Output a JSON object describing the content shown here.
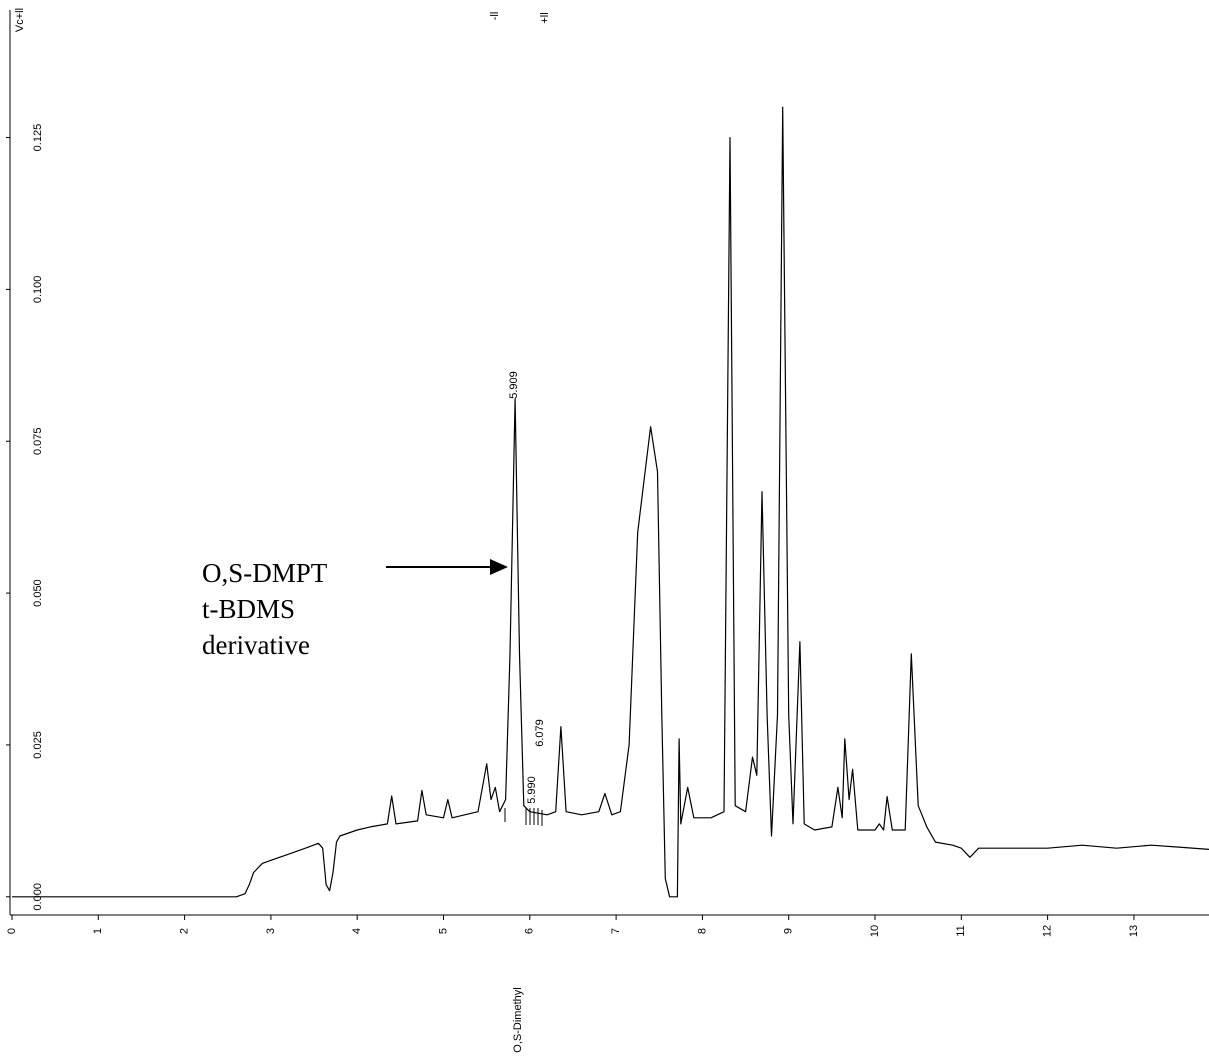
{
  "chart_data": {
    "type": "line",
    "y_label": "Vc+ll",
    "markers": [
      "-ll",
      "+ll"
    ],
    "peak_labels": [
      "5.909",
      "5.990",
      "6.079"
    ],
    "annotation": [
      "O,S-DMPT",
      "t-BDMS",
      "derivative"
    ],
    "compound_label": "O,S-Dimethyl",
    "color": "#000000",
    "xlim": [
      0,
      13.87
    ],
    "ylim": [
      -0.003,
      0.146
    ],
    "xticks": [
      0,
      1,
      2,
      3,
      4,
      5,
      6,
      7,
      8,
      9,
      10,
      11,
      12,
      13
    ],
    "yticks": [
      {
        "value": 0,
        "label": "0.000"
      },
      0.025,
      {
        "value": 0.05,
        "label": "0.050"
      },
      0.075,
      {
        "value": 0.1,
        "label": "0.100"
      },
      0.125
    ],
    "x": [
      0,
      1,
      2,
      2.6,
      2.7,
      2.75,
      2.8,
      2.9,
      3.0,
      3.2,
      3.4,
      3.55,
      3.6,
      3.64,
      3.68,
      3.72,
      3.76,
      3.8,
      4.0,
      4.15,
      4.35,
      4.4,
      4.45,
      4.7,
      4.75,
      4.8,
      5.0,
      5.05,
      5.1,
      5.4,
      5.5,
      5.55,
      5.6,
      5.65,
      5.72,
      5.77,
      5.83,
      5.88,
      5.93,
      6.0,
      6.2,
      6.3,
      6.36,
      6.42,
      6.6,
      6.8,
      6.87,
      6.95,
      7.05,
      7.15,
      7.25,
      7.4,
      7.48,
      7.53,
      7.57,
      7.62,
      7.71,
      7.73,
      7.75,
      7.83,
      7.9,
      8.1,
      8.25,
      8.32,
      8.38,
      8.5,
      8.58,
      8.63,
      8.69,
      8.75,
      8.8,
      8.87,
      8.93,
      9.0,
      9.05,
      9.13,
      9.18,
      9.3,
      9.5,
      9.57,
      9.62,
      9.65,
      9.7,
      9.74,
      9.8,
      10.0,
      10.05,
      10.1,
      10.14,
      10.2,
      10.35,
      10.42,
      10.5,
      10.6,
      10.7,
      10.9,
      11.0,
      11.1,
      11.2,
      11.5,
      12.0,
      12.4,
      12.8,
      13.2,
      13.5,
      13.87
    ],
    "values": [
      0,
      0,
      0,
      0,
      0.0005,
      0.002,
      0.004,
      0.0055,
      0.006,
      0.007,
      0.008,
      0.0088,
      0.008,
      0.002,
      0.001,
      0.004,
      0.009,
      0.01,
      0.011,
      0.0115,
      0.012,
      0.0166,
      0.012,
      0.0125,
      0.0175,
      0.0135,
      0.013,
      0.016,
      0.013,
      0.014,
      0.0219,
      0.016,
      0.018,
      0.014,
      0.016,
      0.04,
      0.082,
      0.04,
      0.015,
      0.014,
      0.0135,
      0.014,
      0.028,
      0.014,
      0.0135,
      0.014,
      0.017,
      0.0135,
      0.014,
      0.025,
      0.06,
      0.0774,
      0.07,
      0.03,
      0.003,
      0,
      0,
      0.026,
      0.012,
      0.018,
      0.013,
      0.013,
      0.014,
      0.125,
      0.015,
      0.014,
      0.023,
      0.02,
      0.0667,
      0.03,
      0.01,
      0.03,
      0.13,
      0.03,
      0.012,
      0.042,
      0.012,
      0.011,
      0.0115,
      0.018,
      0.013,
      0.026,
      0.016,
      0.021,
      0.011,
      0.011,
      0.012,
      0.011,
      0.0165,
      0.011,
      0.011,
      0.04,
      0.015,
      0.0115,
      0.009,
      0.0085,
      0.008,
      0.0065,
      0.008,
      0.008,
      0.008,
      0.0085,
      0.008,
      0.0085,
      0.0082,
      0.0078
    ]
  }
}
